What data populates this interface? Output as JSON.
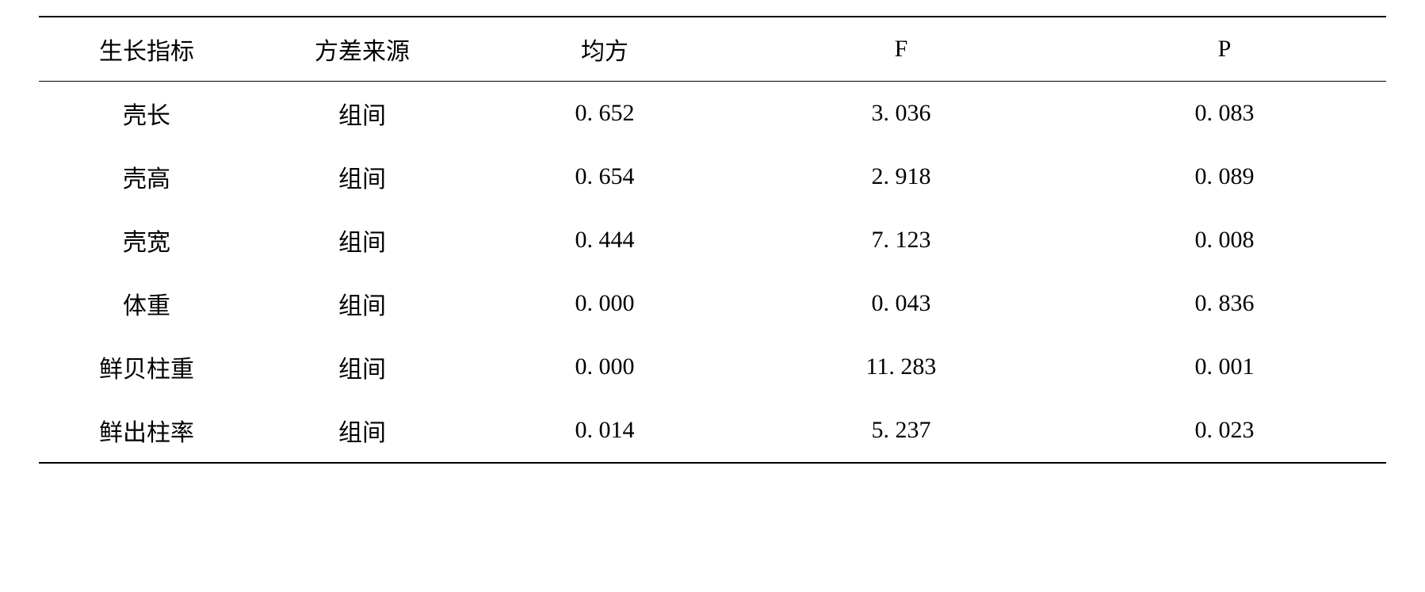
{
  "table": {
    "columns": [
      {
        "key": "indicator",
        "label": "生长指标"
      },
      {
        "key": "source",
        "label": "方差来源"
      },
      {
        "key": "ms",
        "label": "均方"
      },
      {
        "key": "f",
        "label": "F"
      },
      {
        "key": "p",
        "label": "P"
      }
    ],
    "rows": [
      {
        "indicator": "壳长",
        "source": "组间",
        "ms": "0. 652",
        "f": "3. 036",
        "p": "0. 083"
      },
      {
        "indicator": "壳高",
        "source": "组间",
        "ms": "0. 654",
        "f": "2. 918",
        "p": "0. 089"
      },
      {
        "indicator": "壳宽",
        "source": "组间",
        "ms": "0. 444",
        "f": "7. 123",
        "p": "0. 008"
      },
      {
        "indicator": "体重",
        "source": "组间",
        "ms": "0. 000",
        "f": "0. 043",
        "p": "0. 836"
      },
      {
        "indicator": "鲜贝柱重",
        "source": "组间",
        "ms": "0. 000",
        "f": "11. 283",
        "p": "0. 001"
      },
      {
        "indicator": "鲜出柱率",
        "source": "组间",
        "ms": "0. 014",
        "f": "5. 237",
        "p": "0. 023"
      }
    ],
    "border_color": "#000000",
    "background_color": "#ffffff",
    "text_color": "#000000",
    "font_size": 30,
    "row_padding": 18
  }
}
